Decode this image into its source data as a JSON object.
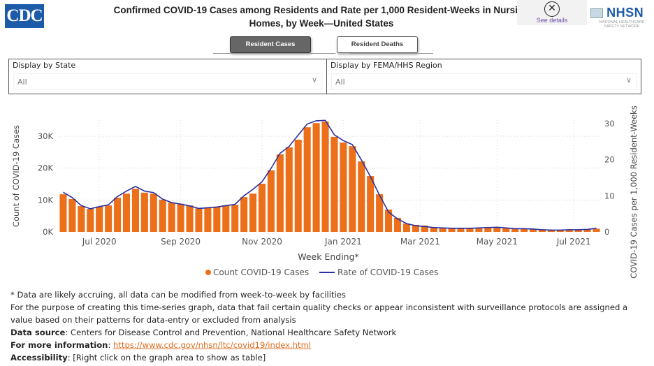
{
  "header": {
    "logo_text": "CDC",
    "title_line1": "Confirmed COVID-19 Cases among Residents and Rate per 1,000 Resident-Weeks in Nursing",
    "title_line2": "Homes, by Week—United States",
    "see_details_icon": "✕",
    "see_details_label": "See details",
    "nhsn_logo_text": "NHSN",
    "nhsn_sub1": "NATIONAL HEALTHCARE",
    "nhsn_sub2": "SAFETY NETWORK"
  },
  "tabs": [
    {
      "label": "Resident Cases",
      "active": true
    },
    {
      "label": "Resident Deaths",
      "active": false
    }
  ],
  "filters": {
    "state": {
      "label": "Display by State",
      "value": "All"
    },
    "region": {
      "label": "Display by FEMA/HHS Region",
      "value": "All"
    }
  },
  "colors": {
    "bar": "#ec6f1a",
    "line": "#2b2fa0",
    "link": "#e06b1e"
  },
  "chart_data": {
    "type": "bar",
    "title": "Confirmed COVID-19 Cases among Residents and Rate per 1,000 Resident-Weeks in Nursing Homes, by Week—United States",
    "xlabel": "Week Ending*",
    "ylabel": "Count of COVID-19 Cases",
    "y2label": "COVID-19 Cases per 1,000 Resident-Weeks",
    "x_tick_labels": [
      "Jul 2020",
      "Sep 2020",
      "Nov 2020",
      "Jan 2021",
      "Mar 2021",
      "May 2021",
      "Jul 2021"
    ],
    "x_tick_positions": [
      4.5,
      13.5,
      22.5,
      31.5,
      40,
      48.5,
      57
    ],
    "y_ticks": [
      "0K",
      "10K",
      "20K",
      "30K"
    ],
    "y_tick_values": [
      0,
      10000,
      20000,
      30000
    ],
    "ylim": [
      0,
      35500
    ],
    "y2_ticks": [
      "0",
      "10",
      "20",
      "30"
    ],
    "y2_tick_values": [
      0,
      10,
      20,
      30
    ],
    "y2lim": [
      0,
      35
    ],
    "grid": true,
    "legend_position": "bottom",
    "series": [
      {
        "name": "Count COVID-19 Cases",
        "type": "bar",
        "axis": "left",
        "values": [
          11800,
          10300,
          8100,
          7200,
          7900,
          8300,
          10700,
          12000,
          13500,
          12300,
          12000,
          10100,
          9200,
          8800,
          8300,
          7400,
          7700,
          7900,
          8300,
          8500,
          10900,
          12000,
          15100,
          19300,
          24300,
          26500,
          28900,
          32800,
          34100,
          34600,
          29800,
          28000,
          26900,
          22100,
          17500,
          11800,
          7000,
          4400,
          2600,
          2200,
          2000,
          1500,
          1300,
          1200,
          1200,
          1200,
          1300,
          1400,
          1400,
          1300,
          1000,
          1000,
          900,
          800,
          700,
          700,
          800,
          800,
          900,
          1000
        ]
      },
      {
        "name": "Rate of COVID-19 Cases",
        "type": "line",
        "axis": "right",
        "values": [
          11.0,
          9.5,
          7.3,
          6.4,
          7.0,
          7.5,
          9.8,
          11.3,
          12.6,
          11.3,
          10.9,
          9.1,
          8.1,
          7.7,
          7.2,
          6.5,
          6.7,
          6.9,
          7.3,
          7.6,
          10.0,
          11.8,
          13.9,
          17.6,
          21.8,
          23.7,
          26.8,
          29.9,
          30.8,
          30.9,
          26.9,
          25.3,
          24.2,
          19.9,
          15.3,
          10.2,
          5.5,
          3.6,
          2.3,
          1.7,
          1.5,
          1.2,
          1.1,
          1.0,
          1.0,
          1.0,
          1.1,
          1.2,
          1.3,
          1.1,
          0.9,
          0.9,
          0.8,
          0.6,
          0.5,
          0.5,
          0.6,
          0.6,
          0.7,
          1.0
        ]
      }
    ]
  },
  "legend": {
    "bar_label": "Count COVID-19 Cases",
    "line_label": "Rate of COVID-19 Cases"
  },
  "footer": {
    "note1": "* Data are likely accruing, all data can be modified from week-to-week by facilities",
    "note2": "For the purpose of creating this time-series graph, data that fail certain quality checks or appear inconsistent with surveillance protocols are assigned a value based on their patterns for data-entry or excluded from analysis",
    "source_label": "Data source",
    "source_text": ": Centers for Disease Control and Prevention, National Healthcare Safety Network",
    "info_label": "For more information",
    "info_sep": ": ",
    "info_link": "https://www.cdc.gov/nhsn/ltc/covid19/index.html",
    "access_label": "Accessibility",
    "access_text": ": [Right click on the graph area to show as table]"
  }
}
